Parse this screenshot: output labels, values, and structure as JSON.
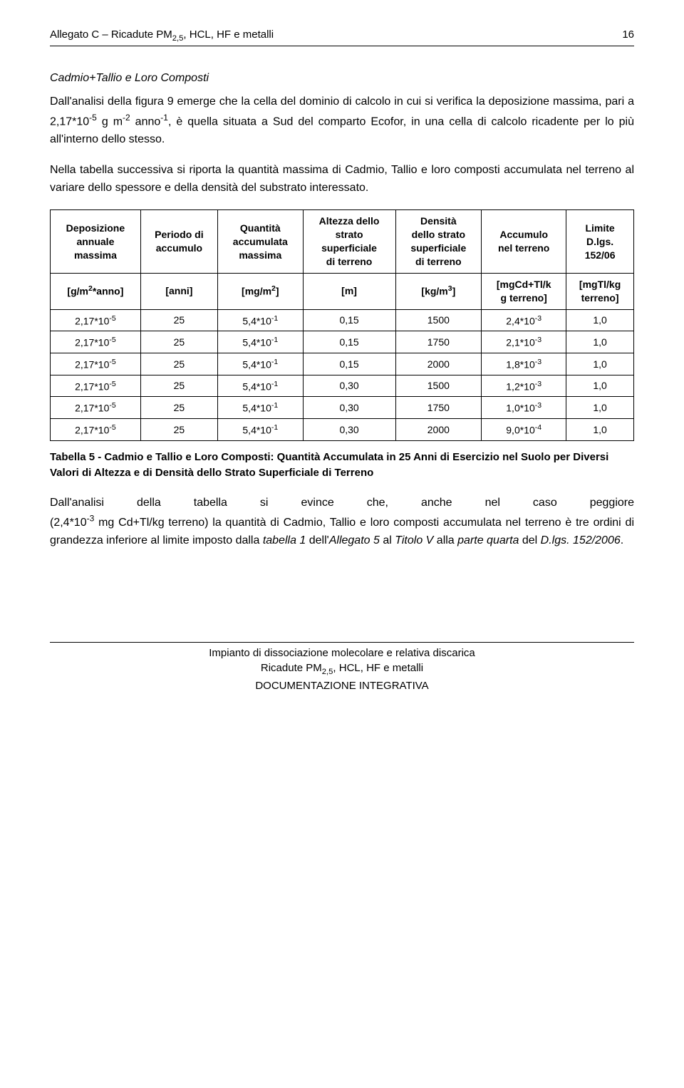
{
  "header": {
    "left": "Allegato C – Ricadute PM2,5, HCL, HF e metalli",
    "page": "16"
  },
  "section_title": "Cadmio+Tallio e Loro Composti",
  "para1_html": "Dall'analisi della figura 9 emerge che la cella del dominio di calcolo in cui si verifica la deposizione massima, pari a 2,17*10<span class='sup'>-5</span> g m<span class='sup'>-2</span> anno<span class='sup'>-1</span>, è quella situata a Sud del comparto Ecofor, in una cella di calcolo ricadente per lo più all'interno dello stesso.",
  "para2": "Nella tabella successiva si riporta la quantità massima di Cadmio, Tallio e loro composti accumulata nel terreno al variare dello spessore e della densità del substrato interessato.",
  "table": {
    "headers": [
      "Deposizione\nannuale\nmassima",
      "Periodo di\naccumulo",
      "Quantità\naccumulata\nmassima",
      "Altezza dello\nstrato\nsuperficiale\ndi terreno",
      "Densità\ndello strato\nsuperficiale\ndi terreno",
      "Accumulo\nnel terreno",
      "Limite\nD.lgs.\n152/06"
    ],
    "units_html": [
      "[g/m<span class='sup'>2</span>*anno]",
      "[anni]",
      "[mg/m<span class='sup'>2</span>]",
      "[m]",
      "[kg/m<span class='sup'>3</span>]",
      "[mgCd+Tl/k<br>g terreno]",
      "[mgTl/kg<br>terreno]"
    ],
    "rows_html": [
      [
        "2,17*10<span class='sup'>-5</span>",
        "25",
        "5,4*10<span class='sup'>-1</span>",
        "0,15",
        "1500",
        "2,4*10<span class='sup'>-3</span>",
        "1,0"
      ],
      [
        "2,17*10<span class='sup'>-5</span>",
        "25",
        "5,4*10<span class='sup'>-1</span>",
        "0,15",
        "1750",
        "2,1*10<span class='sup'>-3</span>",
        "1,0"
      ],
      [
        "2,17*10<span class='sup'>-5</span>",
        "25",
        "5,4*10<span class='sup'>-1</span>",
        "0,15",
        "2000",
        "1,8*10<span class='sup'>-3</span>",
        "1,0"
      ],
      [
        "2,17*10<span class='sup'>-5</span>",
        "25",
        "5,4*10<span class='sup'>-1</span>",
        "0,30",
        "1500",
        "1,2*10<span class='sup'>-3</span>",
        "1,0"
      ],
      [
        "2,17*10<span class='sup'>-5</span>",
        "25",
        "5,4*10<span class='sup'>-1</span>",
        "0,30",
        "1750",
        "1,0*10<span class='sup'>-3</span>",
        "1,0"
      ],
      [
        "2,17*10<span class='sup'>-5</span>",
        "25",
        "5,4*10<span class='sup'>-1</span>",
        "0,30",
        "2000",
        "9,0*10<span class='sup'>-4</span>",
        "1,0"
      ]
    ]
  },
  "table_caption": "Tabella 5 - Cadmio e Tallio e Loro Composti: Quantità Accumulata in 25 Anni di Esercizio nel Suolo per Diversi Valori di Altezza e di Densità dello Strato Superficiale di Terreno",
  "para3_line1": "Dall'analisi della tabella si evince che, anche nel caso peggiore",
  "para3_rest_html": "(2,4*10<span class='sup'>-3</span> mg Cd+Tl/kg terreno) la quantità di Cadmio, Tallio e loro composti accumulata nel terreno è tre ordini di grandezza inferiore al limite imposto dalla <i>tabella 1</i> dell'<i>Allegato 5</i> al <i>Titolo V</i> alla <i>parte quarta</i> del <i>D.lgs. 152/2006</i>.",
  "footer": {
    "line1": "Impianto di dissociazione molecolare e relativa discarica",
    "line2_html": "Ricadute PM<span class='sub'>2,5</span>, HCL, HF e metalli",
    "line3": "DOCUMENTAZIONE INTEGRATIVA"
  }
}
